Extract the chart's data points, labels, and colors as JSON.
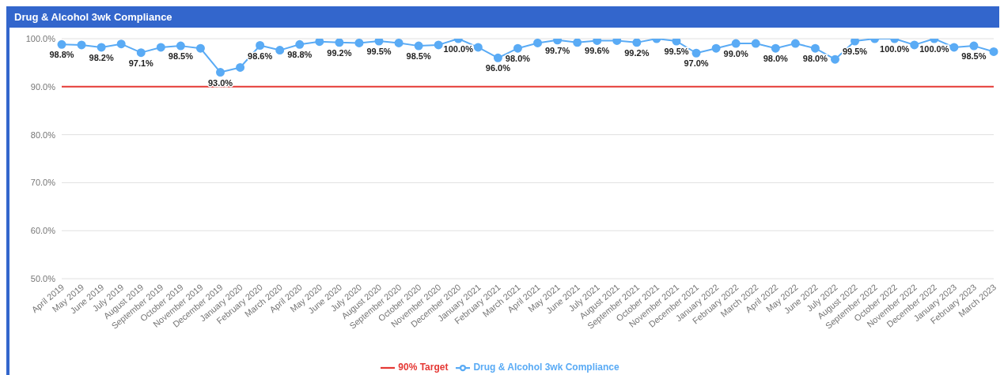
{
  "chart_data": {
    "type": "line",
    "title": "Drug & Alcohol 3wk Compliance",
    "categories": [
      "April 2019",
      "May 2019",
      "June 2019",
      "July 2019",
      "August 2019",
      "September 2019",
      "October 2019",
      "November 2019",
      "December 2019",
      "January 2020",
      "February 2020",
      "March 2020",
      "April 2020",
      "May 2020",
      "June 2020",
      "July 2020",
      "August 2020",
      "September 2020",
      "October 2020",
      "November 2020",
      "December 2020",
      "January 2021",
      "February 2021",
      "March 2021",
      "April 2021",
      "May 2021",
      "June 2021",
      "July 2021",
      "August 2021",
      "September 2021",
      "October 2021",
      "November 2021",
      "December 2021",
      "January 2022",
      "February 2022",
      "March 2022",
      "April 2022",
      "May 2022",
      "June 2022",
      "July 2022",
      "August 2022",
      "September 2022",
      "October 2022",
      "November 2022",
      "December 2022",
      "January 2023",
      "February 2023",
      "March 2023"
    ],
    "series": [
      {
        "name": "Drug & Alcohol 3wk Compliance",
        "color": "#5aabf5",
        "marker": "circle",
        "values": [
          98.8,
          98.7,
          98.2,
          98.9,
          97.1,
          98.2,
          98.5,
          98.0,
          93.0,
          94.0,
          98.6,
          97.6,
          98.8,
          99.4,
          99.2,
          99.1,
          99.5,
          99.1,
          98.5,
          98.7,
          100.0,
          98.2,
          96.0,
          98.0,
          99.1,
          99.7,
          99.2,
          99.6,
          99.6,
          99.2,
          100.0,
          99.5,
          97.0,
          98.0,
          99.0,
          99.0,
          98.0,
          99.0,
          98.0,
          95.7,
          99.5,
          100.0,
          100.0,
          98.7,
          100.0,
          98.2,
          98.5,
          97.3
        ],
        "value_labels": [
          "98.8%",
          null,
          "98.2%",
          null,
          "97.1%",
          null,
          "98.5%",
          null,
          "93.0%",
          null,
          "98.6%",
          null,
          "98.8%",
          null,
          "99.2%",
          null,
          "99.5%",
          null,
          "98.5%",
          null,
          "100.0%",
          null,
          "96.0%",
          "98.0%",
          null,
          "99.7%",
          null,
          "99.6%",
          null,
          "99.2%",
          null,
          "99.5%",
          "97.0%",
          null,
          "99.0%",
          null,
          "98.0%",
          null,
          "98.0%",
          null,
          "99.5%",
          null,
          "100.0%",
          null,
          "100.0%",
          null,
          "98.5%",
          null
        ]
      },
      {
        "name": "90% Target",
        "color": "#e53935",
        "marker": "none",
        "values": [
          90,
          90,
          90,
          90,
          90,
          90,
          90,
          90,
          90,
          90,
          90,
          90,
          90,
          90,
          90,
          90,
          90,
          90,
          90,
          90,
          90,
          90,
          90,
          90,
          90,
          90,
          90,
          90,
          90,
          90,
          90,
          90,
          90,
          90,
          90,
          90,
          90,
          90,
          90,
          90,
          90,
          90,
          90,
          90,
          90,
          90,
          90,
          90
        ]
      }
    ],
    "ylim": [
      50,
      100
    ],
    "yticks": [
      {
        "value": 50,
        "label": "50.0%"
      },
      {
        "value": 60,
        "label": "60.0%"
      },
      {
        "value": 70,
        "label": "70.0%"
      },
      {
        "value": 80,
        "label": "80.0%"
      },
      {
        "value": 90,
        "label": "90.0%"
      },
      {
        "value": 100,
        "label": "100.0%"
      }
    ],
    "grid": "y",
    "legend": "bottom",
    "line_style": "solid"
  }
}
